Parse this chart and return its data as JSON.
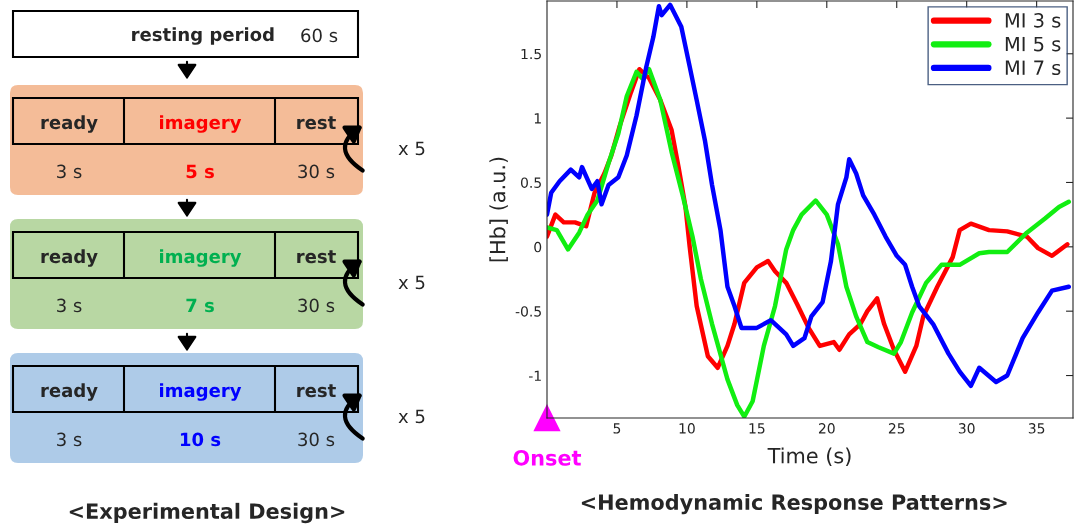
{
  "chart_data": [
    {
      "type": "other",
      "title": "<Experimental Design>",
      "colors": [
        "#ff0000",
        "#00b050",
        "#0000ff"
      ],
      "annotations": [
        "resting period",
        "60 s",
        "ready",
        "imagery",
        "rest",
        "3 s",
        "5 s",
        "30 s",
        "x 5",
        "ready",
        "imagery",
        "rest",
        "3 s",
        "7 s",
        "30 s",
        "x 5",
        "ready",
        "imagery",
        "rest",
        "3 s",
        "10 s",
        "30 s",
        "x 5"
      ]
    },
    {
      "type": "line",
      "title": "<Hemodynamic Response Patterns>",
      "xlabel": "Time (s)",
      "ylabel": "[Hb] (a.u.)",
      "xlim": [
        0,
        37.6
      ],
      "ylim": [
        -1.33,
        1.91
      ],
      "xticks": [
        5,
        10,
        15,
        20,
        25,
        30,
        35
      ],
      "yticks": [
        -1,
        -0.5,
        0,
        0.5,
        1,
        1.5
      ],
      "grid": false,
      "legend": "top right",
      "line_style": "solid",
      "marker": "none",
      "annotations": [
        "Onset"
      ],
      "series": [
        {
          "name": "MI 3 s",
          "color": "#ff0000",
          "x": [
            0,
            0.6,
            1.2,
            2.0,
            2.8,
            3.4,
            4.1,
            4.6,
            5.2,
            6.0,
            6.6,
            7.3,
            8.1,
            8.9,
            9.4,
            9.9,
            10.2,
            10.7,
            11.5,
            12.2,
            12.9,
            13.4,
            14.1,
            15.0,
            15.8,
            16.3,
            17.1,
            17.9,
            18.7,
            19.5,
            20.5,
            20.9,
            21.6,
            22.4,
            22.9,
            23.6,
            24.1,
            24.8,
            25.6,
            26.4,
            26.9,
            27.9,
            29.0,
            29.5,
            30.3,
            31.6,
            32.9,
            34.3,
            35.1,
            36.1,
            37.2
          ],
          "values": [
            0.08,
            0.25,
            0.19,
            0.19,
            0.16,
            0.42,
            0.57,
            0.71,
            0.94,
            1.2,
            1.38,
            1.31,
            1.14,
            0.91,
            0.62,
            0.31,
            0.0,
            -0.46,
            -0.85,
            -0.94,
            -0.77,
            -0.6,
            -0.28,
            -0.16,
            -0.11,
            -0.19,
            -0.28,
            -0.45,
            -0.63,
            -0.77,
            -0.74,
            -0.8,
            -0.68,
            -0.6,
            -0.5,
            -0.4,
            -0.6,
            -0.8,
            -0.97,
            -0.77,
            -0.54,
            -0.31,
            -0.08,
            0.13,
            0.18,
            0.13,
            0.12,
            0.08,
            -0.01,
            -0.07,
            0.02
          ]
        },
        {
          "name": "MI 5 s",
          "color": "#11ee11",
          "x": [
            0,
            0.7,
            1.5,
            2.3,
            2.9,
            3.6,
            4.4,
            5.1,
            5.7,
            6.4,
            6.8,
            7.3,
            8.1,
            8.9,
            9.7,
            10.4,
            11.0,
            11.8,
            12.9,
            13.6,
            14.1,
            14.7,
            15.5,
            16.3,
            17.1,
            17.6,
            18.2,
            19.2,
            20.0,
            20.8,
            21.4,
            22.1,
            22.9,
            23.7,
            24.8,
            25.3,
            26.1,
            27.1,
            28.2,
            29.5,
            30.9,
            31.6,
            32.9,
            34.3,
            35.6,
            36.6,
            37.3
          ],
          "values": [
            0.15,
            0.13,
            -0.02,
            0.11,
            0.25,
            0.36,
            0.65,
            0.88,
            1.17,
            1.36,
            1.31,
            1.38,
            1.14,
            0.74,
            0.4,
            0.08,
            -0.25,
            -0.6,
            -1.03,
            -1.23,
            -1.32,
            -1.2,
            -0.77,
            -0.46,
            -0.02,
            0.13,
            0.25,
            0.36,
            0.25,
            0.02,
            -0.31,
            -0.54,
            -0.74,
            -0.78,
            -0.83,
            -0.74,
            -0.51,
            -0.28,
            -0.14,
            -0.14,
            -0.05,
            -0.04,
            -0.04,
            0.11,
            0.22,
            0.31,
            0.35
          ]
        },
        {
          "name": "MI 7 s",
          "color": "#0000ff",
          "x": [
            0,
            0.3,
            0.9,
            1.7,
            2.3,
            2.5,
            3.2,
            3.6,
            3.9,
            4.4,
            5.1,
            5.7,
            6.4,
            7.1,
            7.6,
            8.0,
            8.2,
            8.8,
            9.6,
            10.2,
            10.7,
            11.3,
            11.8,
            12.4,
            12.9,
            13.4,
            13.9,
            15.0,
            16.0,
            17.1,
            17.6,
            18.4,
            18.9,
            19.7,
            20.3,
            20.8,
            21.4,
            21.6,
            22.1,
            22.6,
            23.4,
            24.2,
            25.0,
            25.6,
            26.1,
            26.6,
            27.6,
            28.7,
            29.5,
            30.3,
            30.9,
            32.1,
            32.9,
            34.0,
            35.1,
            36.1,
            37.3
          ],
          "values": [
            0.25,
            0.42,
            0.51,
            0.6,
            0.54,
            0.62,
            0.45,
            0.51,
            0.33,
            0.48,
            0.54,
            0.71,
            1.02,
            1.4,
            1.63,
            1.87,
            1.8,
            1.88,
            1.71,
            1.4,
            1.14,
            0.82,
            0.48,
            0.13,
            -0.31,
            -0.46,
            -0.63,
            -0.63,
            -0.57,
            -0.68,
            -0.77,
            -0.71,
            -0.54,
            -0.43,
            -0.11,
            0.33,
            0.54,
            0.68,
            0.57,
            0.4,
            0.25,
            0.08,
            -0.07,
            -0.14,
            -0.31,
            -0.46,
            -0.6,
            -0.83,
            -0.97,
            -1.08,
            -0.94,
            -1.05,
            -1.0,
            -0.71,
            -0.51,
            -0.34,
            -0.31
          ]
        }
      ]
    }
  ]
}
